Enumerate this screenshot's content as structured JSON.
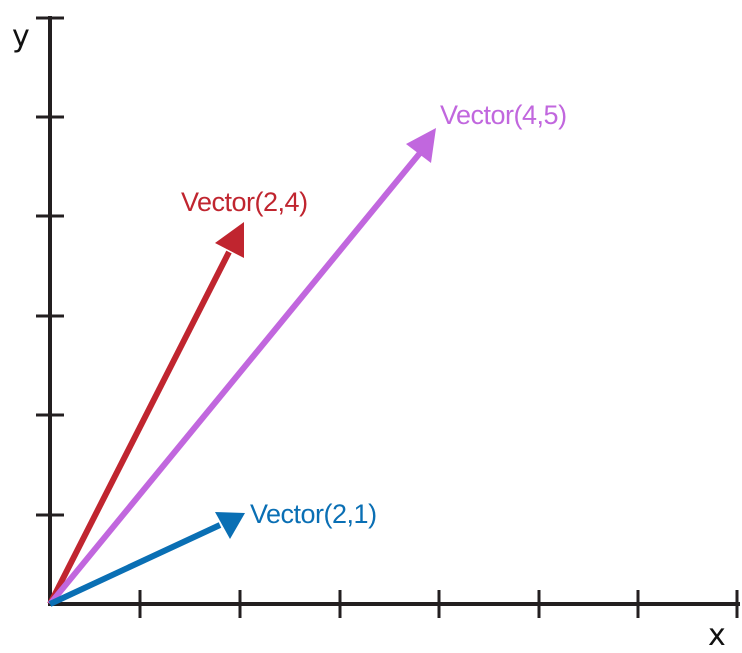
{
  "axes": {
    "x_label": "x",
    "y_label": "y",
    "axis_color": "#231f20",
    "x_ticks": 7,
    "y_ticks": 5
  },
  "vectors": [
    {
      "id": "vector-2-1",
      "label": "Vector(2,1)",
      "x": 2,
      "y": 1,
      "color": "#0a6fb4"
    },
    {
      "id": "vector-2-4",
      "label": "Vector(2,4)",
      "x": 2,
      "y": 4,
      "color": "#c0252f"
    },
    {
      "id": "vector-4-5",
      "label": "Vector(4,5)",
      "x": 4,
      "y": 5,
      "color": "#c167de"
    }
  ]
}
